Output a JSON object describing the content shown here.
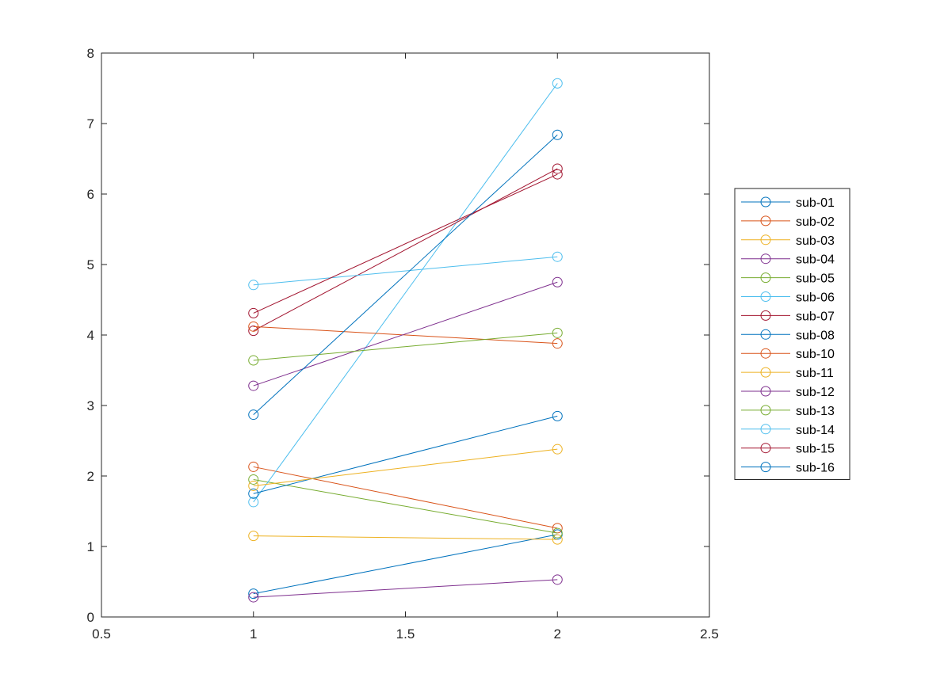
{
  "chart_data": {
    "type": "line",
    "xlim": [
      0.5,
      2.5
    ],
    "ylim": [
      0,
      8
    ],
    "x": [
      1,
      2
    ],
    "x_ticks": [
      0.5,
      1,
      1.5,
      2,
      2.5
    ],
    "x_tick_labels": [
      "0.5",
      "1",
      "1.5",
      "2",
      "2.5"
    ],
    "y_ticks": [
      0,
      1,
      2,
      3,
      4,
      5,
      6,
      7,
      8
    ],
    "y_tick_labels": [
      "0",
      "1",
      "2",
      "3",
      "4",
      "5",
      "6",
      "7",
      "8"
    ],
    "marker": "open-circle",
    "grid": false,
    "legend_position": "right-outside",
    "series": [
      {
        "name": "sub-01",
        "color": "#0072BD",
        "values": [
          0.33,
          1.17
        ]
      },
      {
        "name": "sub-02",
        "color": "#D95319",
        "values": [
          2.13,
          1.26
        ]
      },
      {
        "name": "sub-03",
        "color": "#EDB120",
        "values": [
          1.15,
          1.1
        ]
      },
      {
        "name": "sub-04",
        "color": "#7E2F8E",
        "values": [
          0.28,
          0.53
        ]
      },
      {
        "name": "sub-05",
        "color": "#77AC30",
        "values": [
          1.95,
          1.19
        ]
      },
      {
        "name": "sub-06",
        "color": "#4DBEEE",
        "values": [
          1.63,
          7.57
        ]
      },
      {
        "name": "sub-07",
        "color": "#A2142F",
        "values": [
          4.06,
          6.36
        ]
      },
      {
        "name": "sub-08",
        "color": "#0072BD",
        "values": [
          1.75,
          2.85
        ]
      },
      {
        "name": "sub-10",
        "color": "#D95319",
        "values": [
          4.12,
          3.88
        ]
      },
      {
        "name": "sub-11",
        "color": "#EDB120",
        "values": [
          1.86,
          2.38
        ]
      },
      {
        "name": "sub-12",
        "color": "#7E2F8E",
        "values": [
          3.28,
          4.75
        ]
      },
      {
        "name": "sub-13",
        "color": "#77AC30",
        "values": [
          3.64,
          4.03
        ]
      },
      {
        "name": "sub-14",
        "color": "#4DBEEE",
        "values": [
          4.71,
          5.11
        ]
      },
      {
        "name": "sub-15",
        "color": "#A2142F",
        "values": [
          4.31,
          6.28
        ]
      },
      {
        "name": "sub-16",
        "color": "#0072BD",
        "values": [
          2.87,
          6.84
        ]
      }
    ]
  }
}
